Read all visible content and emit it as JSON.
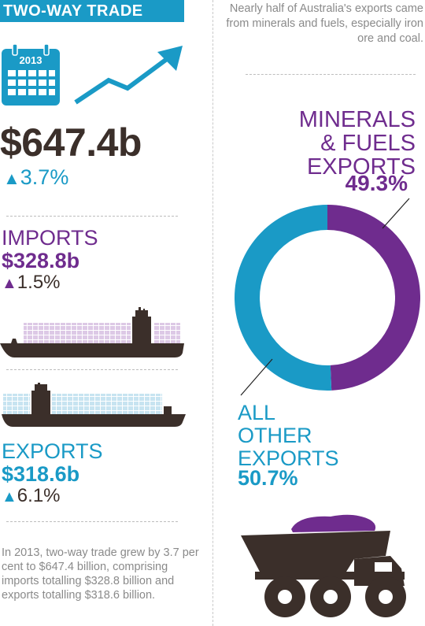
{
  "header": {
    "title": "TWO-WAY TRADE"
  },
  "calendar": {
    "year": "2013",
    "icon": "calendar-icon"
  },
  "trend_icon": "trend-up-arrow-icon",
  "totals": {
    "value": "$647.4b",
    "change": "3.7%"
  },
  "imports": {
    "label": "IMPORTS",
    "value": "$328.8b",
    "change": "1.5%"
  },
  "exports": {
    "label": "EXPORTS",
    "value": "$318.6b",
    "change": "6.1%"
  },
  "summary": "In 2013, two-way trade grew by 3.7 per cent to $647.4 billion, comprising imports totalling $328.8 billion and exports totalling $318.6 billion.",
  "intro": "Nearly half of Australia's exports came from minerals and fuels, especially iron ore and coal.",
  "chart_data": {
    "type": "pie",
    "donut": true,
    "slices": [
      {
        "label": "MINERALS & FUELS EXPORTS",
        "value": 49.3,
        "display": "49.3%",
        "color": "#6f2c8e"
      },
      {
        "label": "ALL OTHER EXPORTS",
        "value": 50.7,
        "display": "50.7%",
        "color": "#1a9ac6"
      }
    ]
  },
  "labels": {
    "minerals_line1": "MINERALS",
    "minerals_line2": "& FUELS",
    "minerals_line3": "EXPORTS",
    "other_line1": "ALL",
    "other_line2": "OTHER",
    "other_line3": "EXPORTS"
  },
  "colors": {
    "blue": "#1a9ac6",
    "purple": "#6f2c8e",
    "dark": "#3b2f2a",
    "grey": "#8a8a8a"
  }
}
